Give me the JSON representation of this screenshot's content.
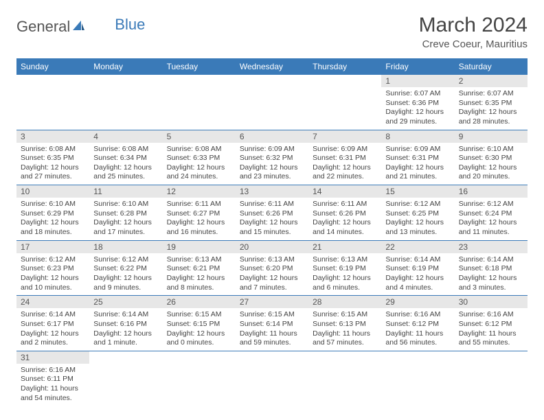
{
  "logo": {
    "textA": "General",
    "textB": "Blue"
  },
  "title": "March 2024",
  "subtitle": "Creve Coeur, Mauritius",
  "colors": {
    "header_bg": "#3a7ab8",
    "header_fg": "#ffffff",
    "daynum_bg": "#e7e7e7",
    "row_border": "#3a7ab8",
    "text": "#444444",
    "background": "#ffffff"
  },
  "weekdays": [
    "Sunday",
    "Monday",
    "Tuesday",
    "Wednesday",
    "Thursday",
    "Friday",
    "Saturday"
  ],
  "weeks": [
    [
      null,
      null,
      null,
      null,
      null,
      {
        "n": "1",
        "sr": "Sunrise: 6:07 AM",
        "ss": "Sunset: 6:36 PM",
        "dl1": "Daylight: 12 hours",
        "dl2": "and 29 minutes."
      },
      {
        "n": "2",
        "sr": "Sunrise: 6:07 AM",
        "ss": "Sunset: 6:35 PM",
        "dl1": "Daylight: 12 hours",
        "dl2": "and 28 minutes."
      }
    ],
    [
      {
        "n": "3",
        "sr": "Sunrise: 6:08 AM",
        "ss": "Sunset: 6:35 PM",
        "dl1": "Daylight: 12 hours",
        "dl2": "and 27 minutes."
      },
      {
        "n": "4",
        "sr": "Sunrise: 6:08 AM",
        "ss": "Sunset: 6:34 PM",
        "dl1": "Daylight: 12 hours",
        "dl2": "and 25 minutes."
      },
      {
        "n": "5",
        "sr": "Sunrise: 6:08 AM",
        "ss": "Sunset: 6:33 PM",
        "dl1": "Daylight: 12 hours",
        "dl2": "and 24 minutes."
      },
      {
        "n": "6",
        "sr": "Sunrise: 6:09 AM",
        "ss": "Sunset: 6:32 PM",
        "dl1": "Daylight: 12 hours",
        "dl2": "and 23 minutes."
      },
      {
        "n": "7",
        "sr": "Sunrise: 6:09 AM",
        "ss": "Sunset: 6:31 PM",
        "dl1": "Daylight: 12 hours",
        "dl2": "and 22 minutes."
      },
      {
        "n": "8",
        "sr": "Sunrise: 6:09 AM",
        "ss": "Sunset: 6:31 PM",
        "dl1": "Daylight: 12 hours",
        "dl2": "and 21 minutes."
      },
      {
        "n": "9",
        "sr": "Sunrise: 6:10 AM",
        "ss": "Sunset: 6:30 PM",
        "dl1": "Daylight: 12 hours",
        "dl2": "and 20 minutes."
      }
    ],
    [
      {
        "n": "10",
        "sr": "Sunrise: 6:10 AM",
        "ss": "Sunset: 6:29 PM",
        "dl1": "Daylight: 12 hours",
        "dl2": "and 18 minutes."
      },
      {
        "n": "11",
        "sr": "Sunrise: 6:10 AM",
        "ss": "Sunset: 6:28 PM",
        "dl1": "Daylight: 12 hours",
        "dl2": "and 17 minutes."
      },
      {
        "n": "12",
        "sr": "Sunrise: 6:11 AM",
        "ss": "Sunset: 6:27 PM",
        "dl1": "Daylight: 12 hours",
        "dl2": "and 16 minutes."
      },
      {
        "n": "13",
        "sr": "Sunrise: 6:11 AM",
        "ss": "Sunset: 6:26 PM",
        "dl1": "Daylight: 12 hours",
        "dl2": "and 15 minutes."
      },
      {
        "n": "14",
        "sr": "Sunrise: 6:11 AM",
        "ss": "Sunset: 6:26 PM",
        "dl1": "Daylight: 12 hours",
        "dl2": "and 14 minutes."
      },
      {
        "n": "15",
        "sr": "Sunrise: 6:12 AM",
        "ss": "Sunset: 6:25 PM",
        "dl1": "Daylight: 12 hours",
        "dl2": "and 13 minutes."
      },
      {
        "n": "16",
        "sr": "Sunrise: 6:12 AM",
        "ss": "Sunset: 6:24 PM",
        "dl1": "Daylight: 12 hours",
        "dl2": "and 11 minutes."
      }
    ],
    [
      {
        "n": "17",
        "sr": "Sunrise: 6:12 AM",
        "ss": "Sunset: 6:23 PM",
        "dl1": "Daylight: 12 hours",
        "dl2": "and 10 minutes."
      },
      {
        "n": "18",
        "sr": "Sunrise: 6:12 AM",
        "ss": "Sunset: 6:22 PM",
        "dl1": "Daylight: 12 hours",
        "dl2": "and 9 minutes."
      },
      {
        "n": "19",
        "sr": "Sunrise: 6:13 AM",
        "ss": "Sunset: 6:21 PM",
        "dl1": "Daylight: 12 hours",
        "dl2": "and 8 minutes."
      },
      {
        "n": "20",
        "sr": "Sunrise: 6:13 AM",
        "ss": "Sunset: 6:20 PM",
        "dl1": "Daylight: 12 hours",
        "dl2": "and 7 minutes."
      },
      {
        "n": "21",
        "sr": "Sunrise: 6:13 AM",
        "ss": "Sunset: 6:19 PM",
        "dl1": "Daylight: 12 hours",
        "dl2": "and 6 minutes."
      },
      {
        "n": "22",
        "sr": "Sunrise: 6:14 AM",
        "ss": "Sunset: 6:19 PM",
        "dl1": "Daylight: 12 hours",
        "dl2": "and 4 minutes."
      },
      {
        "n": "23",
        "sr": "Sunrise: 6:14 AM",
        "ss": "Sunset: 6:18 PM",
        "dl1": "Daylight: 12 hours",
        "dl2": "and 3 minutes."
      }
    ],
    [
      {
        "n": "24",
        "sr": "Sunrise: 6:14 AM",
        "ss": "Sunset: 6:17 PM",
        "dl1": "Daylight: 12 hours",
        "dl2": "and 2 minutes."
      },
      {
        "n": "25",
        "sr": "Sunrise: 6:14 AM",
        "ss": "Sunset: 6:16 PM",
        "dl1": "Daylight: 12 hours",
        "dl2": "and 1 minute."
      },
      {
        "n": "26",
        "sr": "Sunrise: 6:15 AM",
        "ss": "Sunset: 6:15 PM",
        "dl1": "Daylight: 12 hours",
        "dl2": "and 0 minutes."
      },
      {
        "n": "27",
        "sr": "Sunrise: 6:15 AM",
        "ss": "Sunset: 6:14 PM",
        "dl1": "Daylight: 11 hours",
        "dl2": "and 59 minutes."
      },
      {
        "n": "28",
        "sr": "Sunrise: 6:15 AM",
        "ss": "Sunset: 6:13 PM",
        "dl1": "Daylight: 11 hours",
        "dl2": "and 57 minutes."
      },
      {
        "n": "29",
        "sr": "Sunrise: 6:16 AM",
        "ss": "Sunset: 6:12 PM",
        "dl1": "Daylight: 11 hours",
        "dl2": "and 56 minutes."
      },
      {
        "n": "30",
        "sr": "Sunrise: 6:16 AM",
        "ss": "Sunset: 6:12 PM",
        "dl1": "Daylight: 11 hours",
        "dl2": "and 55 minutes."
      }
    ],
    [
      {
        "n": "31",
        "sr": "Sunrise: 6:16 AM",
        "ss": "Sunset: 6:11 PM",
        "dl1": "Daylight: 11 hours",
        "dl2": "and 54 minutes."
      },
      null,
      null,
      null,
      null,
      null,
      null
    ]
  ]
}
